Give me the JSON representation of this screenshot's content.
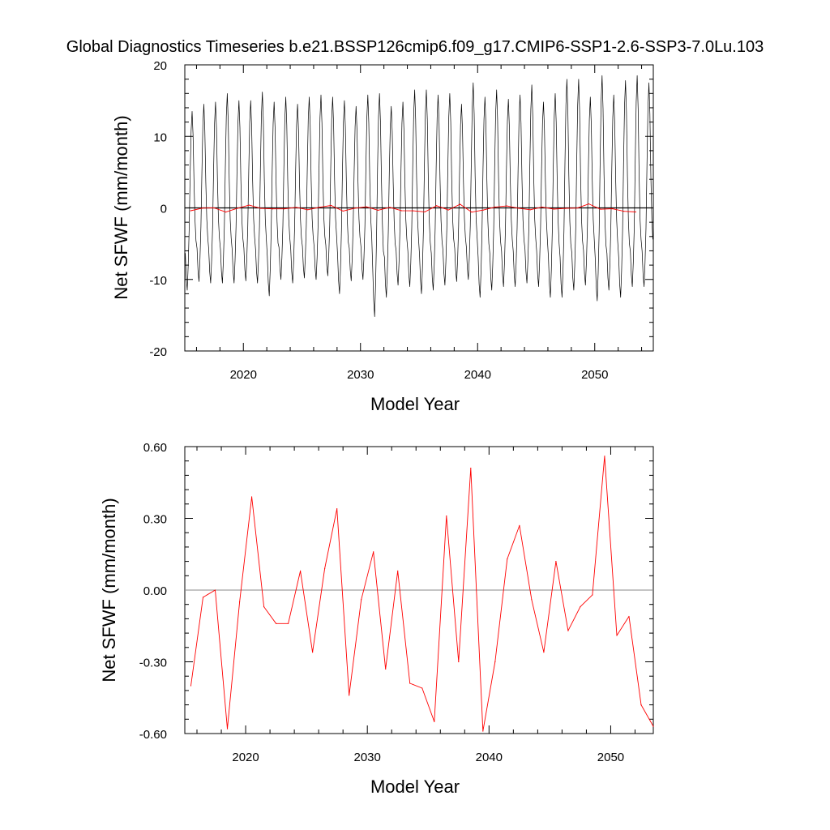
{
  "figure": {
    "title": "Global Diagnostics Timeseries b.e21.BSSP126cmip6.f09_g17.CMIP6-SSP1-2.6-SSP3-7.0Lu.103"
  },
  "colors": {
    "monthly_series": "#000000",
    "annual_series": "#ff0000",
    "zero_line": "#000000",
    "background": "#ffffff"
  },
  "chart_data": [
    {
      "type": "line",
      "title": "",
      "xlabel": "Model Year",
      "ylabel": "Net SFWF (mm/month)",
      "xlim": [
        2015.0,
        2055.0
      ],
      "ylim": [
        -20,
        20
      ],
      "xticks": [
        2020,
        2030,
        2040,
        2050
      ],
      "xtick_labels": [
        "2020",
        "2030",
        "2040",
        "2050"
      ],
      "yticks": [
        -20,
        -10,
        0,
        10,
        20
      ],
      "ytick_labels": [
        "-20",
        "-10",
        "0",
        "10",
        "20"
      ],
      "grid": false,
      "legend": "none",
      "reference_line": 0,
      "series": [
        {
          "description": "monthly net surface freshwater flux, strong seasonal cycle",
          "color": "#000000",
          "monthly_cycle": {
            "start_year": 2015.0,
            "months_per_year": 12,
            "annual_peak_values": [
              13.5,
              14.5,
              14.8,
              16.0,
              15.0,
              15.0,
              16.2,
              14.8,
              15.5,
              14.5,
              15.5,
              15.8,
              15.5,
              15.0,
              14.2,
              15.8,
              16.0,
              14.2,
              14.8,
              16.5,
              16.5,
              15.8,
              16.0,
              14.5,
              17.5,
              15.5,
              16.5,
              15.2,
              15.8,
              17.2,
              14.8,
              16.0,
              18.0,
              18.0,
              15.5,
              18.5,
              15.8,
              17.8,
              18.5,
              17.5
            ],
            "annual_trough_values": [
              -11.5,
              -10.3,
              -10.5,
              -10.5,
              -10.5,
              -10.2,
              -10.5,
              -12.3,
              -10.0,
              -10.5,
              -9.8,
              -10.0,
              -9.5,
              -12.0,
              -10.2,
              -10.0,
              -15.2,
              -12.5,
              -10.8,
              -11.0,
              -12.0,
              -11.5,
              -10.8,
              -10.3,
              -10.0,
              -12.5,
              -11.5,
              -11.0,
              -11.0,
              -10.5,
              -11.0,
              -12.5,
              -12.5,
              -11.5,
              -10.8,
              -13.0,
              -11.5,
              -12.5,
              -11.0,
              -11.0
            ]
          }
        },
        {
          "description": "annual mean net surface freshwater flux",
          "color": "#ff0000",
          "x": [
            2015.5,
            2016.5,
            2017.5,
            2018.5,
            2019.5,
            2020.5,
            2021.5,
            2022.5,
            2023.5,
            2024.5,
            2025.5,
            2026.5,
            2027.5,
            2028.5,
            2029.5,
            2030.5,
            2031.5,
            2032.5,
            2033.5,
            2034.5,
            2035.5,
            2036.5,
            2037.5,
            2038.5,
            2039.5,
            2040.5,
            2041.5,
            2042.5,
            2043.5,
            2044.5,
            2045.5,
            2046.5,
            2047.5,
            2048.5,
            2049.5,
            2050.5,
            2051.5,
            2052.5,
            2053.5
          ],
          "values": [
            -0.4,
            -0.03,
            0.0,
            -0.58,
            -0.05,
            0.39,
            -0.07,
            -0.14,
            -0.14,
            0.08,
            -0.26,
            0.09,
            0.34,
            -0.44,
            -0.04,
            0.16,
            -0.33,
            0.08,
            -0.39,
            -0.41,
            -0.55,
            0.31,
            -0.3,
            0.51,
            -0.59,
            -0.3,
            0.13,
            0.27,
            -0.04,
            -0.26,
            0.12,
            -0.17,
            -0.07,
            -0.02,
            0.56,
            -0.19,
            -0.11,
            -0.48,
            -0.57
          ]
        }
      ]
    },
    {
      "type": "line",
      "title": "",
      "xlabel": "Model Year",
      "ylabel": "Net SFWF (mm/month)",
      "xlim": [
        2015.0,
        2053.5
      ],
      "ylim": [
        -0.6,
        0.6
      ],
      "xticks": [
        2020,
        2030,
        2040,
        2050
      ],
      "xtick_labels": [
        "2020",
        "2030",
        "2040",
        "2050"
      ],
      "yticks": [
        -0.6,
        -0.3,
        0.0,
        0.3,
        0.6
      ],
      "ytick_labels": [
        "-0.60",
        "-0.30",
        "0.00",
        "0.30",
        "0.60"
      ],
      "grid": false,
      "legend": "none",
      "reference_line": 0,
      "series": [
        {
          "description": "annual mean net surface freshwater flux",
          "color": "#ff0000",
          "x": [
            2015.5,
            2016.5,
            2017.5,
            2018.5,
            2019.5,
            2020.5,
            2021.5,
            2022.5,
            2023.5,
            2024.5,
            2025.5,
            2026.5,
            2027.5,
            2028.5,
            2029.5,
            2030.5,
            2031.5,
            2032.5,
            2033.5,
            2034.5,
            2035.5,
            2036.5,
            2037.5,
            2038.5,
            2039.5,
            2040.5,
            2041.5,
            2042.5,
            2043.5,
            2044.5,
            2045.5,
            2046.5,
            2047.5,
            2048.5,
            2049.5,
            2050.5,
            2051.5,
            2052.5,
            2053.5
          ],
          "values": [
            -0.4,
            -0.03,
            0.0,
            -0.58,
            -0.05,
            0.39,
            -0.07,
            -0.14,
            -0.14,
            0.08,
            -0.26,
            0.09,
            0.34,
            -0.44,
            -0.04,
            0.16,
            -0.33,
            0.08,
            -0.39,
            -0.41,
            -0.55,
            0.31,
            -0.3,
            0.51,
            -0.59,
            -0.3,
            0.13,
            0.27,
            -0.04,
            -0.26,
            0.12,
            -0.17,
            -0.07,
            -0.02,
            0.56,
            -0.19,
            -0.11,
            -0.48,
            -0.57
          ]
        }
      ]
    }
  ]
}
